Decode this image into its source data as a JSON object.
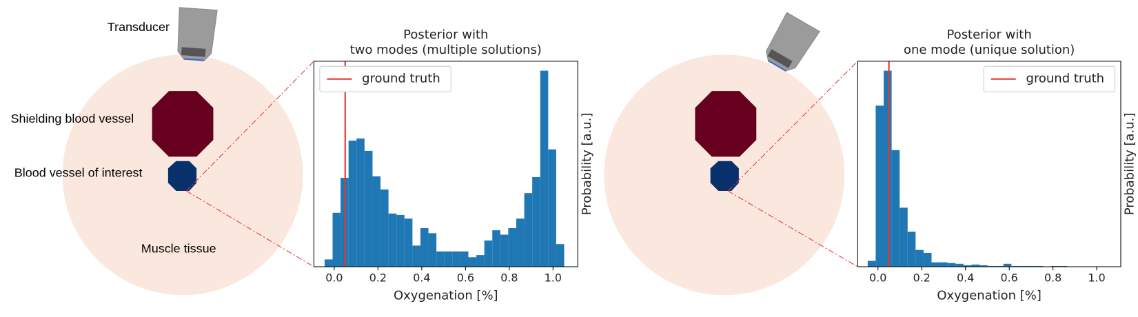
{
  "diagram": {
    "labels": [
      "Transducer",
      "Shielding blood vessel",
      "Blood vessel of interest",
      "Muscle tissue"
    ]
  },
  "chart_data": [
    {
      "type": "histogram",
      "title": [
        "Posterior with",
        "two modes (multiple solutions)"
      ],
      "xlabel": "Oxygenation [%]",
      "ylabel": "Probability [a.u.]",
      "color": "#1f77b4",
      "bins": [
        -0.044,
        -0.0075,
        0.029,
        0.0655,
        0.102,
        0.1385,
        0.175,
        0.2115,
        0.248,
        0.2845,
        0.321,
        0.3575,
        0.394,
        0.4305,
        0.467,
        0.5035,
        0.54,
        0.5765,
        0.613,
        0.6495,
        0.686,
        0.7225,
        0.759,
        0.7955,
        0.832,
        0.8685,
        0.905,
        0.9415,
        0.978,
        1.0145,
        1.051
      ],
      "values": [
        10,
        74,
        122,
        173,
        176,
        159,
        124,
        106,
        73,
        71,
        66,
        29,
        53,
        46,
        21,
        21,
        21,
        21,
        13,
        16,
        36,
        50,
        44,
        53,
        66,
        101,
        123,
        269,
        161,
        31
      ],
      "lines": [
        {
          "name": "ground truth",
          "x": 0.05,
          "color": "#e8352e"
        }
      ],
      "legend": "upper left",
      "xlim": [
        -0.093,
        1.113
      ],
      "ylim": [
        0,
        282
      ],
      "xticks": [
        {
          "value": 0,
          "label": "0.0"
        },
        {
          "value": 0.2,
          "label": "0.2"
        },
        {
          "value": 0.4,
          "label": "0.4"
        },
        {
          "value": 0.6,
          "label": "0.6"
        },
        {
          "value": 0.8,
          "label": "0.8"
        },
        {
          "value": 1,
          "label": "1.0"
        }
      ]
    },
    {
      "type": "histogram",
      "title": [
        "Posterior with",
        "one mode (unique solution)"
      ],
      "xlabel": "Oxygenation [%]",
      "ylabel": "Probability [a.u.]",
      "color": "#1f77b4",
      "bins": [
        -0.047,
        -0.0105,
        0.026,
        0.0625,
        0.099,
        0.1355,
        0.172,
        0.2085,
        0.245,
        0.2815,
        0.318,
        0.3545,
        0.391,
        0.4275,
        0.464,
        0.5005,
        0.537,
        0.5735,
        0.61,
        0.6465,
        0.683,
        0.7195,
        0.756,
        0.7925,
        0.829,
        0.8655
      ],
      "values": [
        8,
        221,
        269,
        160,
        81,
        48,
        23,
        19,
        6,
        6,
        5,
        4,
        2,
        3,
        2,
        1,
        1,
        4,
        1,
        1,
        1,
        1,
        0,
        1,
        1
      ],
      "lines": [
        {
          "name": "ground truth",
          "x": 0.05,
          "color": "#e8352e"
        }
      ],
      "legend": "upper right",
      "xlim": [
        -0.093,
        1.11
      ],
      "ylim": [
        0,
        282
      ],
      "xticks": [
        {
          "value": 0,
          "label": "0.0"
        },
        {
          "value": 0.2,
          "label": "0.2"
        },
        {
          "value": 0.4,
          "label": "0.4"
        },
        {
          "value": 0.6,
          "label": "0.6"
        },
        {
          "value": 0.8,
          "label": "0.8"
        },
        {
          "value": 1,
          "label": "1.0"
        }
      ]
    }
  ]
}
